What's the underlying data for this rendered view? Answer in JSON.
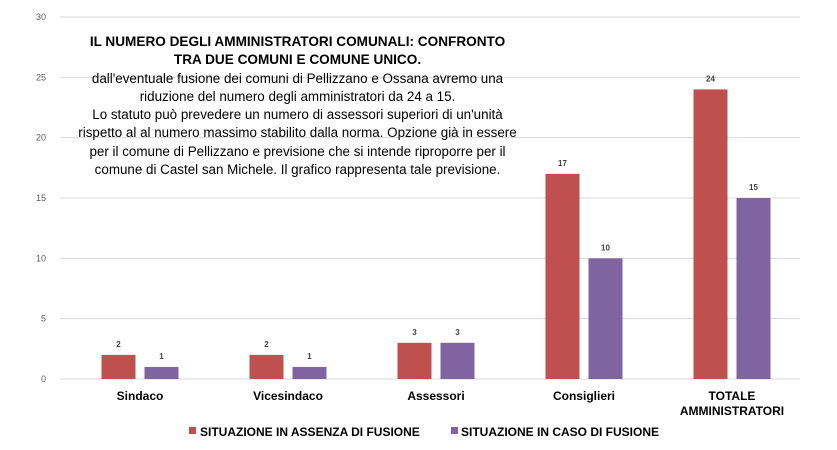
{
  "colors": {
    "absence": "#C0504D",
    "fusion": "#8064A2",
    "grid": "#D9D9D9"
  },
  "note": {
    "title": "IL NUMERO DEGLI AMMINISTRATORI COMUNALI: CONFRONTO TRA DUE COMUNI E COMUNE UNICO.",
    "text1": "dall'eventuale fusione dei comuni di Pellizzano e Ossana avremo una riduzione del numero degli amministratori da 24 a 15.",
    "text2": "Lo statuto può prevedere un numero di assessori superiori di un'unità rispetto al al numero massimo stabilito dalla norma. Opzione già in essere per il comune di Pellizzano e previsione che si intende riproporre per il comune di Castel san Michele. Il grafico rappresenta tale previsione."
  },
  "chart_data": {
    "type": "bar",
    "categories": [
      "Sindaco",
      "Vicesindaco",
      "Assessori",
      "Consiglieri",
      "TOTALE AMMINISTRATORI"
    ],
    "series": [
      {
        "name": "SITUAZIONE IN ASSENZA DI FUSIONE",
        "values": [
          2,
          2,
          3,
          17,
          24
        ]
      },
      {
        "name": "SITUAZIONE IN CASO DI FUSIONE",
        "values": [
          1,
          1,
          3,
          10,
          15
        ]
      }
    ],
    "yticks": [
      "0",
      "5",
      "10",
      "15",
      "20",
      "25",
      "30"
    ],
    "ylim": [
      0,
      30
    ],
    "grid": true,
    "legend": "bottom"
  }
}
